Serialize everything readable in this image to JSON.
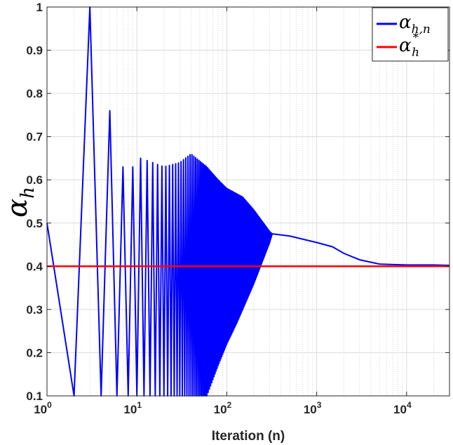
{
  "chart_data": {
    "type": "line",
    "title": "",
    "xlabel": "Iteration (n)",
    "ylabel": "α_h",
    "xscale": "log",
    "xlim": [
      1,
      30000
    ],
    "ylim": [
      0.1,
      1.0
    ],
    "grid": true,
    "legend_position": "top-right",
    "x_tick_values": [
      1,
      10,
      100,
      1000,
      10000
    ],
    "x_tick_labels": [
      {
        "base": "10",
        "exp": "0"
      },
      {
        "base": "10",
        "exp": "1"
      },
      {
        "base": "10",
        "exp": "2"
      },
      {
        "base": "10",
        "exp": "3"
      },
      {
        "base": "10",
        "exp": "4"
      }
    ],
    "y_tick_values": [
      0.1,
      0.2,
      0.3,
      0.4,
      0.5,
      0.6,
      0.7,
      0.8,
      0.9,
      1.0
    ],
    "y_tick_labels": [
      "0.1",
      "0.2",
      "0.3",
      "0.4",
      "0.5",
      "0.6",
      "0.7",
      "0.8",
      "0.9",
      "1"
    ],
    "series": [
      {
        "name": "α_{h,n}",
        "legend_main": "α",
        "legend_sub": "h,n",
        "color": "#0000ff",
        "oscillation": {
          "upper_envelope": [
            [
              1,
              0.5
            ],
            [
              3,
              1.0
            ],
            [
              5,
              0.76
            ],
            [
              7,
              0.63
            ],
            [
              9,
              0.63
            ],
            [
              11,
              0.65
            ],
            [
              15,
              0.64
            ],
            [
              20,
              0.63
            ],
            [
              30,
              0.64
            ],
            [
              40,
              0.66
            ],
            [
              60,
              0.63
            ],
            [
              80,
              0.6
            ],
            [
              100,
              0.58
            ],
            [
              150,
              0.56
            ],
            [
              200,
              0.53
            ],
            [
              300,
              0.48
            ],
            [
              320,
              0.475
            ]
          ],
          "lower_envelope": [
            [
              1,
              0.5
            ],
            [
              2,
              0.1
            ],
            [
              4,
              0.1
            ],
            [
              6,
              0.1
            ],
            [
              10,
              0.1
            ],
            [
              20,
              0.1
            ],
            [
              40,
              0.1
            ],
            [
              60,
              0.1
            ],
            [
              80,
              0.17
            ],
            [
              100,
              0.22
            ],
            [
              130,
              0.27
            ],
            [
              200,
              0.36
            ],
            [
              300,
              0.455
            ],
            [
              320,
              0.475
            ]
          ]
        },
        "tail": [
          [
            320,
            0.475
          ],
          [
            500,
            0.47
          ],
          [
            1000,
            0.455
          ],
          [
            1500,
            0.445
          ],
          [
            2000,
            0.43
          ],
          [
            3000,
            0.415
          ],
          [
            5000,
            0.405
          ],
          [
            10000,
            0.403
          ],
          [
            20000,
            0.403
          ],
          [
            30000,
            0.402
          ]
        ]
      },
      {
        "name": "α*_h",
        "legend_main": "α",
        "legend_sub": "h",
        "legend_sup": "*",
        "color": "#ff0000",
        "x": [
          1,
          30000
        ],
        "y": [
          0.4,
          0.4
        ]
      }
    ]
  }
}
